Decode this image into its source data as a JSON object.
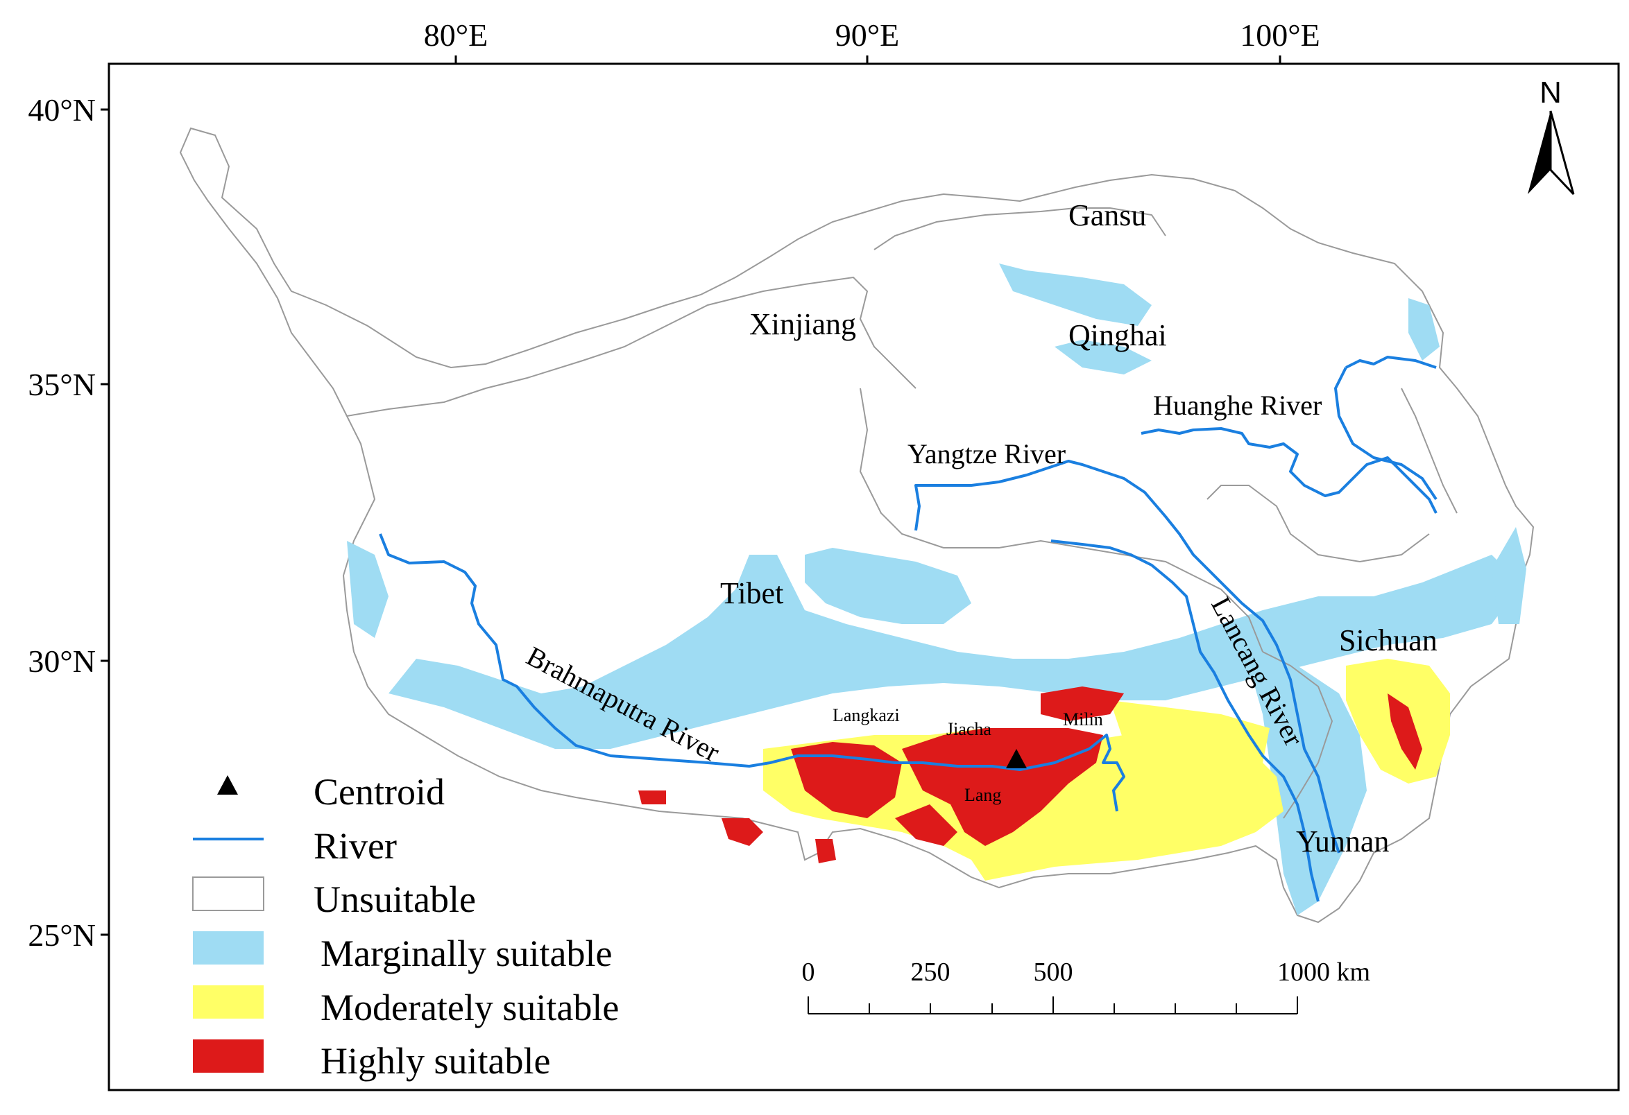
{
  "axes": {
    "top_ticks": [
      "80°E",
      "90°E",
      "100°E"
    ],
    "left_ticks": [
      "40°N",
      "35°N",
      "30°N",
      "25°N"
    ]
  },
  "north_arrow": {
    "label": "N",
    "icon": "north-arrow-icon"
  },
  "regions": {
    "xinjiang": "Xinjiang",
    "gansu": "Gansu",
    "qinghai": "Qinghai",
    "tibet": "Tibet",
    "sichuan": "Sichuan",
    "yunnan": "Yunnan"
  },
  "rivers": {
    "huanghe": "Huanghe River",
    "yangtze": "Yangtze River",
    "lancang": "Lancang River",
    "brahmaputra": "Brahmaputra River"
  },
  "towns": {
    "langkazi": "Langkazi",
    "jiacha": "Jiacha",
    "milin": "Milin",
    "lang": "Lang"
  },
  "legend": {
    "items": [
      {
        "label": "Centroid",
        "symbol": "triangle",
        "color": "#000000"
      },
      {
        "label": "River",
        "symbol": "line",
        "color": "#1a7fe0"
      },
      {
        "label": "Unsuitable",
        "symbol": "box",
        "color": "#ffffff"
      },
      {
        "label": "Marginally suitable",
        "symbol": "box",
        "color": "#9fdcf3"
      },
      {
        "label": "Moderately suitable",
        "symbol": "box",
        "color": "#ffff66"
      },
      {
        "label": "Highly suitable",
        "symbol": "box",
        "color": "#dd1a1a"
      }
    ]
  },
  "scale_bar": {
    "labels": [
      "0",
      "250",
      "500",
      "1000 km"
    ]
  },
  "colors": {
    "marginal": "#9fdcf3",
    "moderate": "#ffff66",
    "high": "#dd1a1a",
    "river": "#1a7fe0",
    "border": "#9a9a9a"
  }
}
